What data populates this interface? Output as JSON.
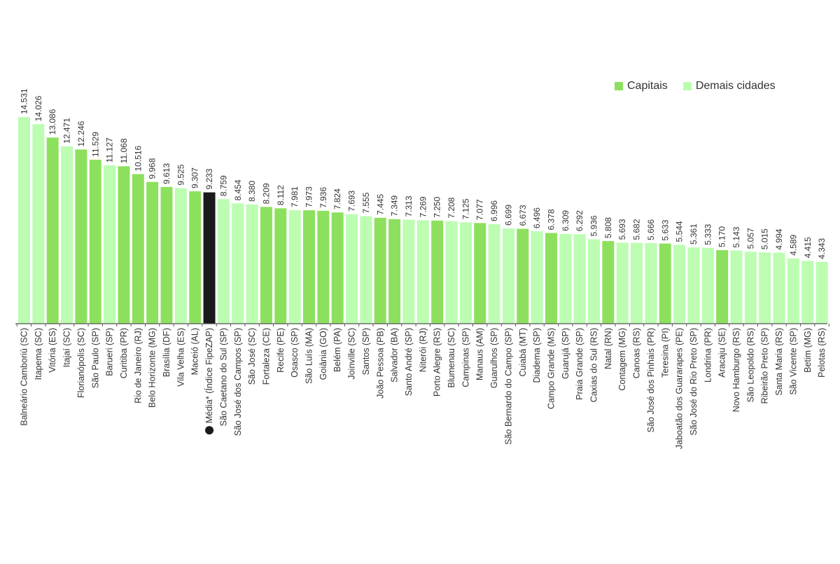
{
  "legend": {
    "capitais_label": "Capitais",
    "demais_label": "Demais cidades"
  },
  "colors": {
    "capital": "#8de05e",
    "other": "#bcfdb2",
    "average": "#1a1a1a",
    "axis": "#555555",
    "text": "#333333"
  },
  "chart_data": {
    "type": "bar",
    "legend_position": "top-right",
    "grid": false,
    "ylim": [
      0,
      15000
    ],
    "categories": [
      "Balneário Camboriú (SC)",
      "Itapema (SC)",
      "Vitória (ES)",
      "Itajaí (SC)",
      "Florianópolis (SC)",
      "São Paulo (SP)",
      "Barueri (SP)",
      "Curitiba (PR)",
      "Rio de Janeiro (RJ)",
      "Belo Horizonte (MG)",
      "Brasília (DF)",
      "Vila Velha (ES)",
      "Maceió (AL)",
      "Média* (Índice FipeZAP)",
      "São Caetano do Sul (SP)",
      "São José dos Campos (SP)",
      "São José (SC)",
      "Fortaleza (CE)",
      "Recife (PE)",
      "Osasco (SP)",
      "São Luís (MA)",
      "Goiânia (GO)",
      "Belém (PA)",
      "Joinville (SC)",
      "Santos (SP)",
      "João Pessoa (PB)",
      "Salvador (BA)",
      "Santo André (SP)",
      "Niterói (RJ)",
      "Porto Alegre (RS)",
      "Blumenau (SC)",
      "Campinas (SP)",
      "Manaus (AM)",
      "Guarulhos (SP)",
      "São Bernardo do Campo (SP)",
      "Cuiabá (MT)",
      "Diadema (SP)",
      "Campo Grande (MS)",
      "Guarujá (SP)",
      "Praia Grande (SP)",
      "Caxias do Sul (RS)",
      "Natal (RN)",
      "Contagem (MG)",
      "Canoas (RS)",
      "São José dos Pinhais (PR)",
      "Teresina (PI)",
      "Jaboatão dos Guararapes (PE)",
      "São José do Rio Preto (SP)",
      "Londrina (PR)",
      "Aracaju (SE)",
      "Novo Hamburgo (RS)",
      "São Leopoldo (RS)",
      "Ribeirão Preto (SP)",
      "Santa Maria (RS)",
      "São Vicente (SP)",
      "Betim (MG)",
      "Pelotas (RS)"
    ],
    "values": [
      14531,
      14026,
      13086,
      12471,
      12246,
      11529,
      11127,
      11068,
      10516,
      9968,
      9613,
      9525,
      9307,
      9233,
      8759,
      8454,
      8380,
      8209,
      8112,
      7981,
      7973,
      7936,
      7824,
      7693,
      7555,
      7445,
      7349,
      7313,
      7269,
      7250,
      7208,
      7125,
      7077,
      6996,
      6699,
      6673,
      6496,
      6378,
      6309,
      6292,
      5936,
      5808,
      5693,
      5682,
      5666,
      5633,
      5544,
      5361,
      5333,
      5170,
      5143,
      5057,
      5015,
      4994,
      4589,
      4415,
      4343
    ],
    "value_labels": [
      "14.531",
      "14.026",
      "13.086",
      "12.471",
      "12.246",
      "11.529",
      "11.127",
      "11.068",
      "10.516",
      "9.968",
      "9.613",
      "9.525",
      "9.307",
      "9.233",
      "8.759",
      "8.454",
      "8.380",
      "8.209",
      "8.112",
      "7.981",
      "7.973",
      "7.936",
      "7.824",
      "7.693",
      "7.555",
      "7.445",
      "7.349",
      "7.313",
      "7.269",
      "7.250",
      "7.208",
      "7.125",
      "7.077",
      "6.996",
      "6.699",
      "6.673",
      "6.496",
      "6.378",
      "6.309",
      "6.292",
      "5.936",
      "5.808",
      "5.693",
      "5.682",
      "5.666",
      "5.633",
      "5.544",
      "5.361",
      "5.333",
      "5.170",
      "5.143",
      "5.057",
      "5.015",
      "4.994",
      "4.589",
      "4.415",
      "4.343"
    ],
    "group": [
      "other",
      "other",
      "capital",
      "other",
      "capital",
      "capital",
      "other",
      "capital",
      "capital",
      "capital",
      "capital",
      "other",
      "capital",
      "average",
      "other",
      "other",
      "other",
      "capital",
      "capital",
      "other",
      "capital",
      "capital",
      "capital",
      "other",
      "other",
      "capital",
      "capital",
      "other",
      "other",
      "capital",
      "other",
      "other",
      "capital",
      "other",
      "other",
      "capital",
      "other",
      "capital",
      "other",
      "other",
      "other",
      "capital",
      "other",
      "other",
      "other",
      "capital",
      "other",
      "other",
      "other",
      "capital",
      "other",
      "other",
      "other",
      "other",
      "other",
      "other",
      "other"
    ]
  }
}
